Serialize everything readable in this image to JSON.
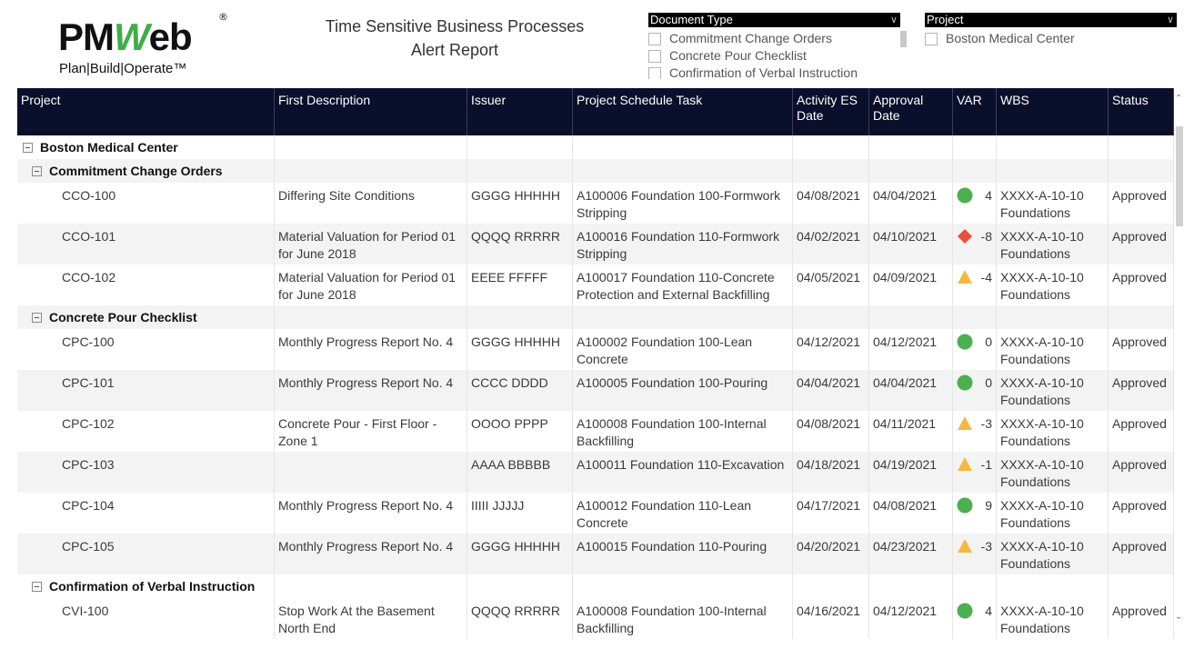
{
  "logo": {
    "main_pre": "PM",
    "main_w": "W",
    "main_post": "eb",
    "reg": "®",
    "sub": "Plan|Build|Operate™"
  },
  "report_title": {
    "line1": "Time Sensitive Business Processes",
    "line2": "Alert Report"
  },
  "slicers": {
    "document_type": {
      "label": "Document Type",
      "items": [
        "Commitment Change Orders",
        "Concrete Pour Checklist",
        "Confirmation of Verbal Instruction"
      ]
    },
    "project": {
      "label": "Project",
      "items": [
        "Boston Medical Center"
      ]
    }
  },
  "table": {
    "columns": [
      "Project",
      "First Description",
      "Issuer",
      "Project Schedule Task",
      "Activity ES Date",
      "Approval Date",
      "VAR",
      "WBS",
      "Status"
    ],
    "project_group": "Boston Medical Center",
    "groups": [
      {
        "name": "Commitment Change Orders",
        "rows": [
          {
            "id": "CCO-100",
            "desc": "Differing Site Conditions",
            "issuer": "GGGG HHHHH",
            "task": "A100006 Foundation 100-Formwork Stripping",
            "es": "04/08/2021",
            "appr": "04/04/2021",
            "var_icon": "green-circle-icon",
            "var": "4",
            "wbs": "XXXX-A-10-10 Foundations",
            "status": "Approved"
          },
          {
            "id": "CCO-101",
            "desc": "Material Valuation for Period 01 for June 2018",
            "issuer": "QQQQ RRRRR",
            "task": "A100016 Foundation 110-Formwork Stripping",
            "es": "04/02/2021",
            "appr": "04/10/2021",
            "var_icon": "red-diamond-icon",
            "var": "-8",
            "wbs": "XXXX-A-10-10 Foundations",
            "status": "Approved"
          },
          {
            "id": "CCO-102",
            "desc": "Material Valuation for Period 01 for June 2018",
            "issuer": "EEEE FFFFF",
            "task": "A100017 Foundation 110-Concrete Protection and External Backfilling",
            "es": "04/05/2021",
            "appr": "04/09/2021",
            "var_icon": "yellow-triangle-icon",
            "var": "-4",
            "wbs": "XXXX-A-10-10 Foundations",
            "status": "Approved"
          }
        ]
      },
      {
        "name": "Concrete Pour Checklist",
        "rows": [
          {
            "id": "CPC-100",
            "desc": "Monthly Progress Report No. 4",
            "issuer": "GGGG HHHHH",
            "task": "A100002 Foundation 100-Lean Concrete",
            "es": "04/12/2021",
            "appr": "04/12/2021",
            "var_icon": "green-circle-icon",
            "var": "0",
            "wbs": "XXXX-A-10-10 Foundations",
            "status": "Approved"
          },
          {
            "id": "CPC-101",
            "desc": "Monthly Progress Report No. 4",
            "issuer": "CCCC DDDD",
            "task": "A100005 Foundation 100-Pouring",
            "es": "04/04/2021",
            "appr": "04/04/2021",
            "var_icon": "green-circle-icon",
            "var": "0",
            "wbs": "XXXX-A-10-10 Foundations",
            "status": "Approved"
          },
          {
            "id": "CPC-102",
            "desc": "Concrete Pour - First Floor - Zone 1",
            "issuer": "OOOO PPPP",
            "task": "A100008 Foundation 100-Internal Backfilling",
            "es": "04/08/2021",
            "appr": "04/11/2021",
            "var_icon": "yellow-triangle-icon",
            "var": "-3",
            "wbs": "XXXX-A-10-10 Foundations",
            "status": "Approved"
          },
          {
            "id": "CPC-103",
            "desc": "",
            "issuer": "AAAA BBBBB",
            "task": "A100011 Foundation 110-Excavation",
            "es": "04/18/2021",
            "appr": "04/19/2021",
            "var_icon": "yellow-triangle-icon",
            "var": "-1",
            "wbs": "XXXX-A-10-10 Foundations",
            "status": "Approved"
          },
          {
            "id": "CPC-104",
            "desc": "Monthly Progress Report No. 4",
            "issuer": "IIIII JJJJJ",
            "task": "A100012 Foundation 110-Lean Concrete",
            "es": "04/17/2021",
            "appr": "04/08/2021",
            "var_icon": "green-circle-icon",
            "var": "9",
            "wbs": "XXXX-A-10-10 Foundations",
            "status": "Approved"
          },
          {
            "id": "CPC-105",
            "desc": "Monthly Progress Report No. 4",
            "issuer": "GGGG HHHHH",
            "task": "A100015 Foundation 110-Pouring",
            "es": "04/20/2021",
            "appr": "04/23/2021",
            "var_icon": "yellow-triangle-icon",
            "var": "-3",
            "wbs": "XXXX-A-10-10 Foundations",
            "status": "Approved"
          }
        ]
      },
      {
        "name": "Confirmation of Verbal Instruction",
        "rows": [
          {
            "id": "CVI-100",
            "desc": "Stop Work At the Basement North End",
            "issuer": "QQQQ RRRRR",
            "task": "A100008 Foundation 100-Internal Backfilling",
            "es": "04/16/2021",
            "appr": "04/12/2021",
            "var_icon": "green-circle-icon",
            "var": "4",
            "wbs": "XXXX-A-10-10 Foundations",
            "status": "Approved"
          }
        ]
      }
    ]
  },
  "colors": {
    "header_bg": "#0a0f2b",
    "green": "#4caf50",
    "red": "#e5533d",
    "yellow": "#f5b942",
    "logo_green": "#3fae49"
  }
}
